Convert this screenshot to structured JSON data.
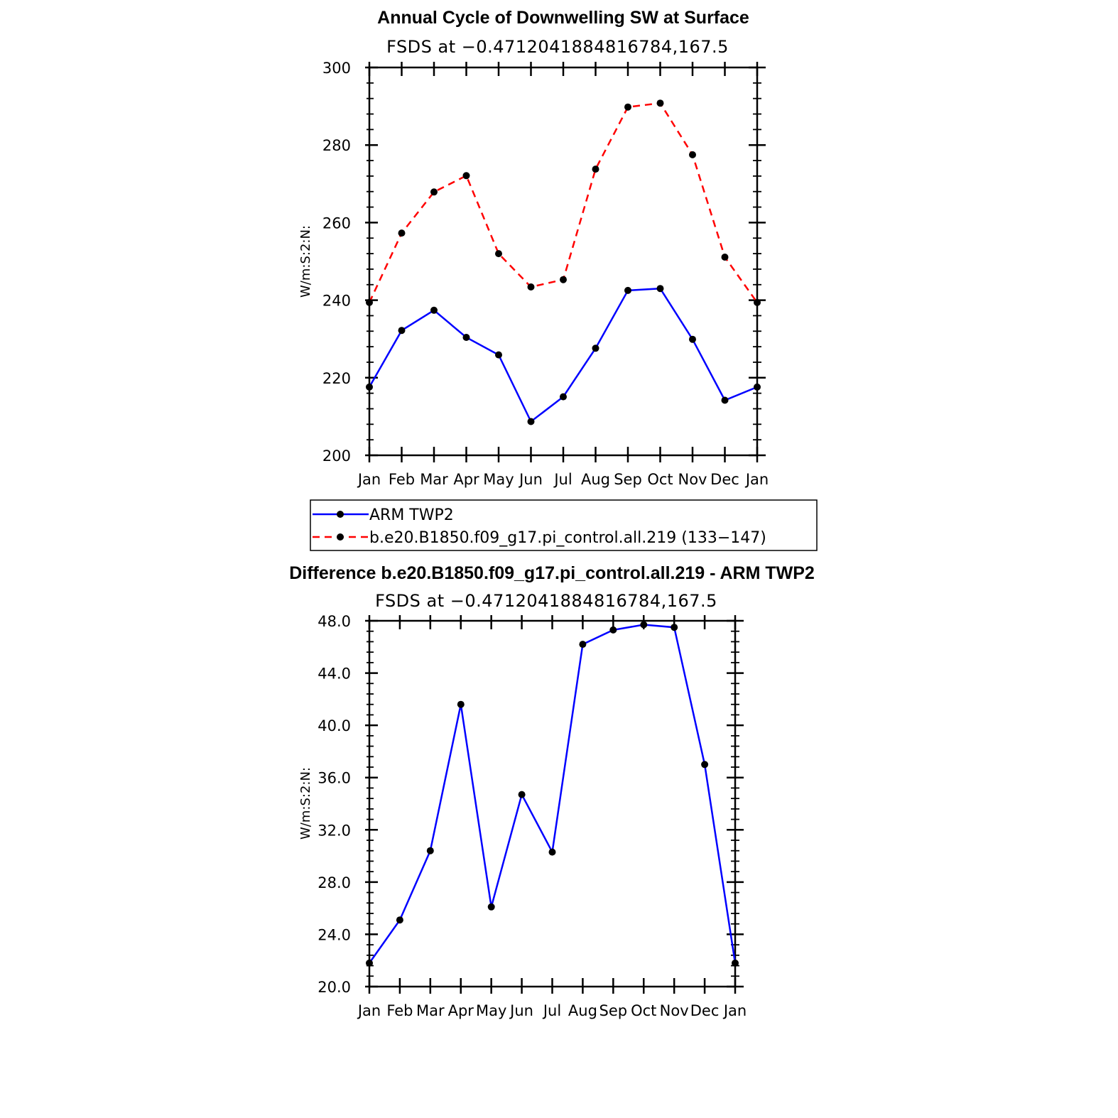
{
  "chart_data": [
    {
      "type": "line",
      "title": "Annual Cycle of Downwelling SW at Surface",
      "subtitle": "FSDS at −0.4712041884816784,167.5",
      "ylabel": "W/m:S:2:N:",
      "xlabel": "",
      "categories": [
        "Jan",
        "Feb",
        "Mar",
        "Apr",
        "May",
        "Jun",
        "Jul",
        "Aug",
        "Sep",
        "Oct",
        "Nov",
        "Dec",
        "Jan"
      ],
      "ylim": [
        200,
        300
      ],
      "yticks": [
        "200",
        "220",
        "240",
        "260",
        "280",
        "300"
      ],
      "series": [
        {
          "name": "ARM TWP2",
          "color": "#0000ff",
          "dashed": false,
          "values": [
            217.6,
            232.2,
            237.4,
            230.4,
            225.9,
            208.7,
            215.1,
            227.6,
            242.5,
            243.0,
            229.9,
            214.2,
            217.6
          ]
        },
        {
          "name": "b.e20.B1850.f09_g17.pi_control.all.219 (133−147)",
          "color": "#ff0000",
          "dashed": true,
          "values": [
            239.4,
            257.3,
            267.9,
            272.1,
            252.0,
            243.4,
            245.3,
            273.8,
            289.8,
            290.8,
            277.5,
            251.1,
            239.4
          ]
        }
      ],
      "legend": "bottom"
    },
    {
      "type": "line",
      "title": "Difference b.e20.B1850.f09_g17.pi_control.all.219 - ARM TWP2",
      "subtitle": "FSDS at −0.4712041884816784,167.5",
      "ylabel": "W/m:S:2:N:",
      "xlabel": "",
      "categories": [
        "Jan",
        "Feb",
        "Mar",
        "Apr",
        "May",
        "Jun",
        "Jul",
        "Aug",
        "Sep",
        "Oct",
        "Nov",
        "Dec",
        "Jan"
      ],
      "ylim": [
        20,
        48
      ],
      "yticks": [
        "20.0",
        "24.0",
        "28.0",
        "32.0",
        "36.0",
        "40.0",
        "44.0",
        "48.0"
      ],
      "series": [
        {
          "color": "#0000ff",
          "dashed": false,
          "values": [
            21.8,
            25.1,
            30.4,
            41.6,
            26.1,
            34.7,
            30.3,
            46.2,
            47.3,
            47.7,
            47.5,
            37.0,
            21.8
          ]
        }
      ]
    }
  ]
}
